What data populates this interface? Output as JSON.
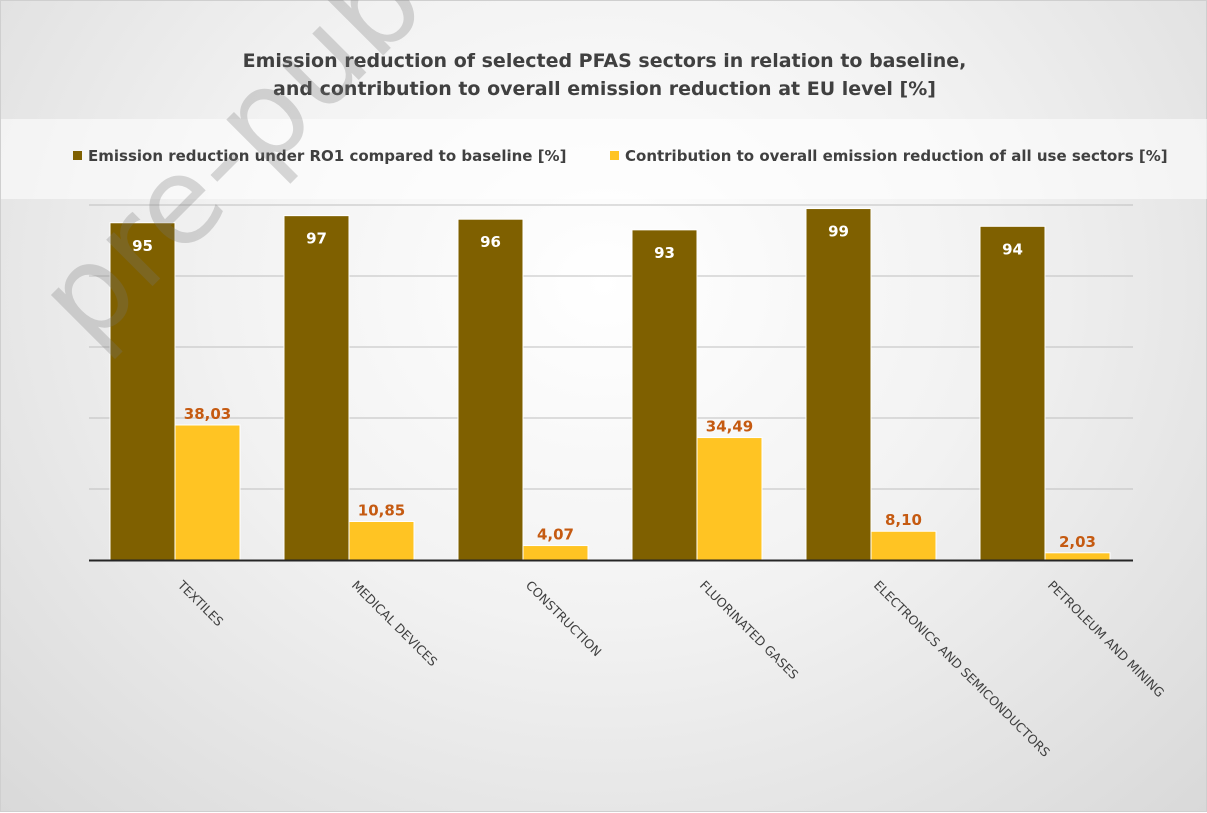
{
  "watermark": "pre-publication",
  "colors": {
    "series1": "#7F6000",
    "series2": "#FFC423",
    "label1": "#FFFFFF",
    "label2": "#C55A11"
  },
  "chart_data": {
    "type": "bar",
    "title_line1": "Emission reduction of selected PFAS sectors in relation to baseline,",
    "title_line2": "and contribution to overall emission reduction at EU level [%]",
    "categories": [
      "TEXTILES",
      "MEDICAL DEVICES",
      "CONSTRUCTION",
      "FLUORINATED GASES",
      "ELECTRONICS AND SEMICONDUCTORS",
      "PETROLEUM AND MINING"
    ],
    "series": [
      {
        "name": "Emission reduction under RO1 compared to baseline [%]",
        "values": [
          95,
          97,
          96,
          93,
          99,
          94
        ],
        "labels": [
          "95",
          "97",
          "96",
          "93",
          "99",
          "94"
        ]
      },
      {
        "name": "Contribution to overall emission reduction of all use sectors [%]",
        "values": [
          38.03,
          10.85,
          4.07,
          34.49,
          8.1,
          2.03
        ],
        "labels": [
          "38,03",
          "10,85",
          "4,07",
          "34,49",
          "8,10",
          "2,03"
        ]
      }
    ],
    "ylim": [
      0,
      100
    ],
    "grid": true,
    "legend_position": "top"
  }
}
